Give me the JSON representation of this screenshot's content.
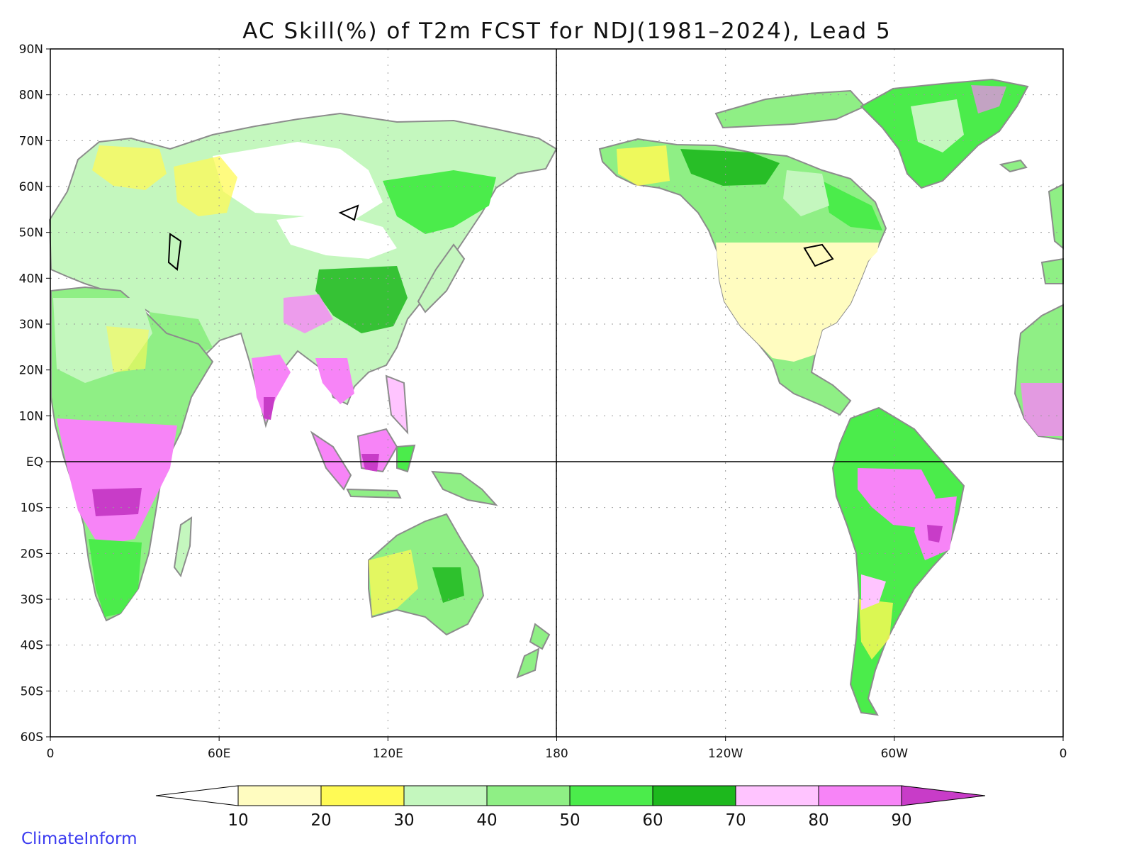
{
  "title": "AC Skill(%) of T2m FCST for NDJ(1981–2024), Lead 5",
  "credit": "ClimateInform",
  "map": {
    "projection": "equirectangular",
    "lon_range_deg_east": [
      0,
      360
    ],
    "lat_range": [
      -60,
      90
    ],
    "gridlines": "dotted",
    "lat_ticks": [
      "90N",
      "80N",
      "70N",
      "60N",
      "50N",
      "40N",
      "30N",
      "20N",
      "10N",
      "EQ",
      "10S",
      "20S",
      "30S",
      "40S",
      "50S",
      "60S"
    ],
    "lon_ticks": [
      "0",
      "60E",
      "120E",
      "180",
      "120W",
      "60W",
      "0"
    ],
    "reference_lines": [
      "equator",
      "180 meridian"
    ],
    "ocean_color": "#ffffff",
    "coastline_color": "#8c8c8c",
    "inland_water_color": "#000000"
  },
  "colorbar": {
    "ticks": [
      "10",
      "20",
      "30",
      "40",
      "50",
      "60",
      "70",
      "80",
      "90"
    ],
    "colors": [
      "#ffffff",
      "#fffcc0",
      "#fffa55",
      "#c4f7be",
      "#8fef85",
      "#4bec4b",
      "#1db81d",
      "#ffc4ff",
      "#f784f7",
      "#c83cc8"
    ],
    "extends": "both"
  }
}
